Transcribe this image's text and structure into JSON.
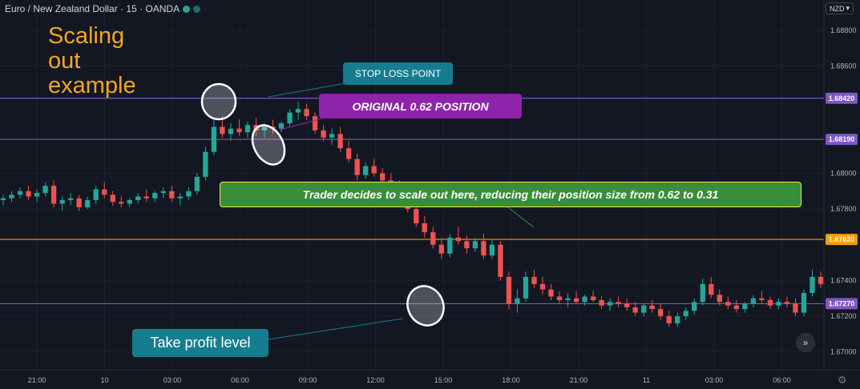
{
  "header": {
    "symbol": "Euro / New Zealand Dollar · 15 · OANDA",
    "status_dots": [
      {
        "icon": "market-open-dot",
        "color": "#26a69a"
      },
      {
        "icon": "data-live-dot",
        "color": "#26a69a"
      }
    ]
  },
  "currency_button": {
    "label": "NZD",
    "icon": "chevron-down-icon"
  },
  "annotations": {
    "title": "Scaling\nout\nexample",
    "stop_loss": "STOP LOSS POINT",
    "original_position": "ORIGINAL 0.62 POSITION",
    "trader_note": "Trader decides to scale out here, reducing their position size from 0.62 to 0.31",
    "take_profit": "Take profit level"
  },
  "colors": {
    "background": "#131722",
    "grid": "#1e222d",
    "up": "#26a69a",
    "down": "#ef5350",
    "purple_line": "#7e57c2",
    "orange_line": "#f59f00",
    "text_orange": "#f5a623"
  },
  "chart_data": {
    "type": "candlestick",
    "price_axis": {
      "ylim": [
        1.669,
        1.6897
      ],
      "ticks": [
        "1.68800",
        "1.68600",
        "1.68420",
        "1.68190",
        "1.68000",
        "1.67800",
        "1.67630",
        "1.67400",
        "1.67270",
        "1.67200",
        "1.67000"
      ],
      "tick_values": [
        1.688,
        1.686,
        1.6842,
        1.6819,
        1.68,
        1.678,
        1.6763,
        1.674,
        1.6727,
        1.672,
        1.67
      ]
    },
    "time_axis": {
      "labels": [
        "21:00",
        "10",
        "03:00",
        "06:00",
        "09:00",
        "12:00",
        "15:00",
        "18:00",
        "21:00",
        "11",
        "03:00",
        "06:00"
      ]
    },
    "horizontal_levels": [
      {
        "name": "stop-loss-level",
        "price": 1.6842,
        "label": "1.68420",
        "color": "#7e57c2"
      },
      {
        "name": "original-position-level",
        "price": 1.6819,
        "label": "1.68190",
        "color": "#7e57c2"
      },
      {
        "name": "scale-out-level",
        "price": 1.6763,
        "label": "1.67630",
        "color": "#f59f00"
      },
      {
        "name": "take-profit-level",
        "price": 1.6727,
        "label": "1.67270",
        "color": "#7e57c2"
      }
    ],
    "candles": [
      [
        1.6785,
        1.6788,
        1.6782,
        1.6786
      ],
      [
        1.6786,
        1.679,
        1.6784,
        1.6788
      ],
      [
        1.6788,
        1.6792,
        1.6786,
        1.679
      ],
      [
        1.679,
        1.6793,
        1.6785,
        1.6787
      ],
      [
        1.6787,
        1.6791,
        1.6784,
        1.6789
      ],
      [
        1.6789,
        1.6795,
        1.6787,
        1.6793
      ],
      [
        1.6793,
        1.6796,
        1.6781,
        1.6783
      ],
      [
        1.6783,
        1.6787,
        1.6779,
        1.6785
      ],
      [
        1.6785,
        1.6789,
        1.6782,
        1.6786
      ],
      [
        1.6786,
        1.6788,
        1.6779,
        1.6781
      ],
      [
        1.6781,
        1.6787,
        1.678,
        1.6785
      ],
      [
        1.6785,
        1.6793,
        1.6783,
        1.6791
      ],
      [
        1.6791,
        1.6795,
        1.6786,
        1.6788
      ],
      [
        1.6788,
        1.679,
        1.6782,
        1.6784
      ],
      [
        1.6784,
        1.6787,
        1.6781,
        1.6783
      ],
      [
        1.6783,
        1.6786,
        1.6781,
        1.6785
      ],
      [
        1.6785,
        1.6789,
        1.6783,
        1.6787
      ],
      [
        1.6787,
        1.6791,
        1.6784,
        1.6786
      ],
      [
        1.6786,
        1.679,
        1.6784,
        1.6789
      ],
      [
        1.6789,
        1.6792,
        1.6786,
        1.679
      ],
      [
        1.679,
        1.6793,
        1.6784,
        1.6786
      ],
      [
        1.6786,
        1.6789,
        1.6782,
        1.6787
      ],
      [
        1.6787,
        1.6792,
        1.6785,
        1.679
      ],
      [
        1.679,
        1.68,
        1.6788,
        1.6798
      ],
      [
        1.6798,
        1.6815,
        1.6796,
        1.6812
      ],
      [
        1.6812,
        1.683,
        1.681,
        1.6826
      ],
      [
        1.6826,
        1.6832,
        1.682,
        1.6822
      ],
      [
        1.6822,
        1.6828,
        1.6818,
        1.6825
      ],
      [
        1.6825,
        1.683,
        1.6821,
        1.6823
      ],
      [
        1.6823,
        1.6829,
        1.682,
        1.6827
      ],
      [
        1.6827,
        1.6831,
        1.6821,
        1.6824
      ],
      [
        1.6824,
        1.6828,
        1.682,
        1.6826
      ],
      [
        1.6826,
        1.683,
        1.6822,
        1.6825
      ],
      [
        1.6825,
        1.6829,
        1.6823,
        1.6828
      ],
      [
        1.6828,
        1.6836,
        1.6826,
        1.6834
      ],
      [
        1.6834,
        1.684,
        1.683,
        1.6836
      ],
      [
        1.6836,
        1.6839,
        1.683,
        1.6832
      ],
      [
        1.6832,
        1.6834,
        1.6822,
        1.6824
      ],
      [
        1.6824,
        1.6827,
        1.6818,
        1.682
      ],
      [
        1.682,
        1.6825,
        1.6816,
        1.6822
      ],
      [
        1.6822,
        1.6826,
        1.6812,
        1.6814
      ],
      [
        1.6814,
        1.6818,
        1.6806,
        1.6808
      ],
      [
        1.6808,
        1.6811,
        1.6796,
        1.6799
      ],
      [
        1.6799,
        1.6806,
        1.6797,
        1.6804
      ],
      [
        1.6804,
        1.6808,
        1.6798,
        1.68
      ],
      [
        1.68,
        1.6803,
        1.6794,
        1.6796
      ],
      [
        1.6796,
        1.68,
        1.679,
        1.6792
      ],
      [
        1.6792,
        1.6796,
        1.6784,
        1.6786
      ],
      [
        1.6786,
        1.6789,
        1.6778,
        1.678
      ],
      [
        1.678,
        1.6783,
        1.677,
        1.6772
      ],
      [
        1.6772,
        1.6776,
        1.6764,
        1.6767
      ],
      [
        1.6767,
        1.677,
        1.6758,
        1.676
      ],
      [
        1.676,
        1.6764,
        1.6752,
        1.6755
      ],
      [
        1.6755,
        1.6766,
        1.6753,
        1.6764
      ],
      [
        1.6764,
        1.677,
        1.676,
        1.6762
      ],
      [
        1.6762,
        1.6765,
        1.6755,
        1.6758
      ],
      [
        1.6758,
        1.6764,
        1.6756,
        1.6762
      ],
      [
        1.6762,
        1.6766,
        1.6752,
        1.6754
      ],
      [
        1.6754,
        1.6763,
        1.6752,
        1.676
      ],
      [
        1.676,
        1.6762,
        1.674,
        1.6742
      ],
      [
        1.6742,
        1.6745,
        1.6724,
        1.6727
      ],
      [
        1.6727,
        1.6735,
        1.6722,
        1.673
      ],
      [
        1.673,
        1.6745,
        1.6728,
        1.6742
      ],
      [
        1.6742,
        1.6746,
        1.6736,
        1.6738
      ],
      [
        1.6738,
        1.6742,
        1.6732,
        1.6735
      ],
      [
        1.6735,
        1.6738,
        1.6729,
        1.6731
      ],
      [
        1.6731,
        1.6734,
        1.6727,
        1.6729
      ],
      [
        1.6729,
        1.6733,
        1.6725,
        1.673
      ],
      [
        1.673,
        1.6734,
        1.6727,
        1.6728
      ],
      [
        1.6728,
        1.6732,
        1.6726,
        1.6731
      ],
      [
        1.6731,
        1.6734,
        1.6728,
        1.6729
      ],
      [
        1.6729,
        1.6731,
        1.6724,
        1.6726
      ],
      [
        1.6726,
        1.673,
        1.6723,
        1.6728
      ],
      [
        1.6728,
        1.6731,
        1.6725,
        1.6727
      ],
      [
        1.6727,
        1.673,
        1.6723,
        1.6725
      ],
      [
        1.6725,
        1.6728,
        1.672,
        1.6722
      ],
      [
        1.6722,
        1.6727,
        1.672,
        1.6726
      ],
      [
        1.6726,
        1.6729,
        1.6722,
        1.6724
      ],
      [
        1.6724,
        1.6727,
        1.6718,
        1.672
      ],
      [
        1.672,
        1.6723,
        1.6714,
        1.6716
      ],
      [
        1.6716,
        1.6722,
        1.6714,
        1.672
      ],
      [
        1.672,
        1.6725,
        1.6718,
        1.6723
      ],
      [
        1.6723,
        1.673,
        1.6721,
        1.6728
      ],
      [
        1.6728,
        1.6741,
        1.6726,
        1.6738
      ],
      [
        1.6738,
        1.6742,
        1.673,
        1.6732
      ],
      [
        1.6732,
        1.6735,
        1.6726,
        1.6728
      ],
      [
        1.6728,
        1.6731,
        1.6724,
        1.6726
      ],
      [
        1.6726,
        1.6729,
        1.6722,
        1.6724
      ],
      [
        1.6724,
        1.6728,
        1.6722,
        1.6727
      ],
      [
        1.6727,
        1.6732,
        1.6725,
        1.673
      ],
      [
        1.673,
        1.6734,
        1.6727,
        1.6729
      ],
      [
        1.6729,
        1.6731,
        1.6724,
        1.6726
      ],
      [
        1.6726,
        1.673,
        1.6724,
        1.6728
      ],
      [
        1.6728,
        1.6731,
        1.6725,
        1.6727
      ],
      [
        1.6727,
        1.673,
        1.672,
        1.6722
      ],
      [
        1.6722,
        1.6735,
        1.672,
        1.6733
      ],
      [
        1.6733,
        1.6746,
        1.6731,
        1.6742
      ],
      [
        1.6742,
        1.6745,
        1.6736,
        1.6738
      ]
    ]
  }
}
